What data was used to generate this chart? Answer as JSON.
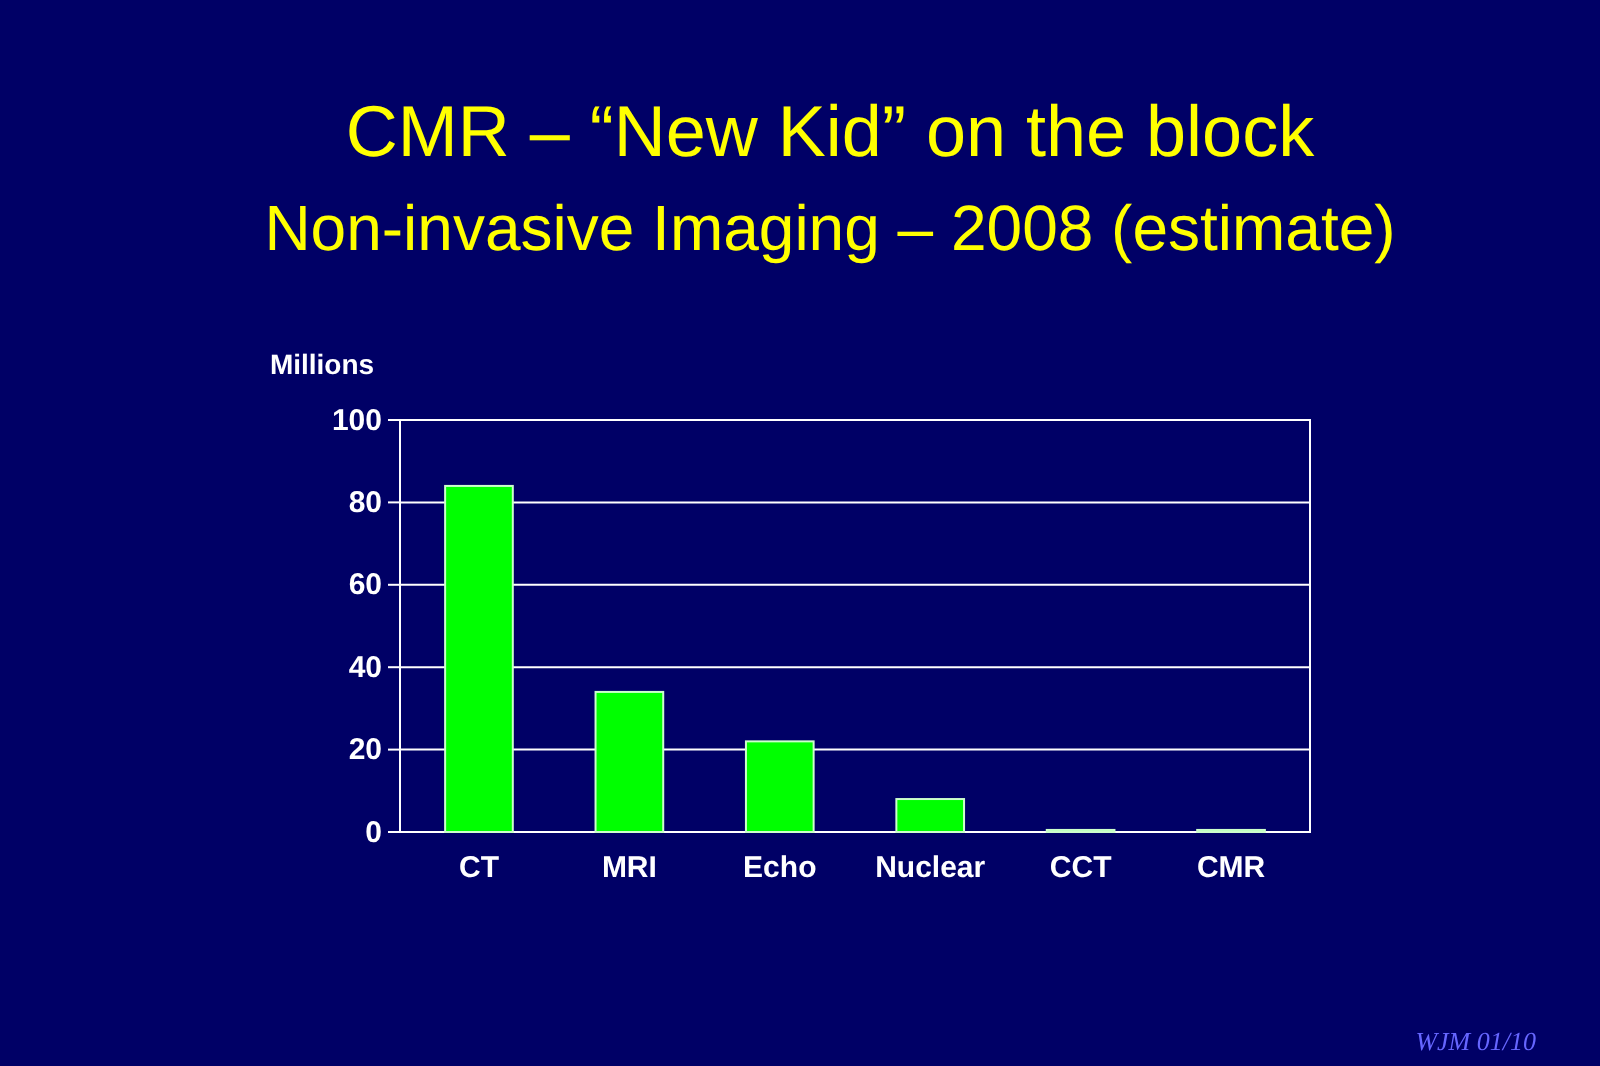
{
  "chart_data": {
    "type": "bar",
    "title": "CMR – “New Kid” on the block",
    "subtitle": "Non-invasive Imaging – 2008 (estimate)",
    "ylabel": "Millions",
    "categories": [
      "CT",
      "MRI",
      "Echo",
      "Nuclear",
      "CCT",
      "CMR"
    ],
    "values": [
      84,
      34,
      22,
      8,
      0.5,
      0.5
    ],
    "color": "#00ff00",
    "ylim": [
      0,
      100
    ],
    "yticks": [
      0,
      20,
      40,
      60,
      80,
      100
    ],
    "grid": "y",
    "annotations": [
      "WJM 01/10"
    ]
  }
}
